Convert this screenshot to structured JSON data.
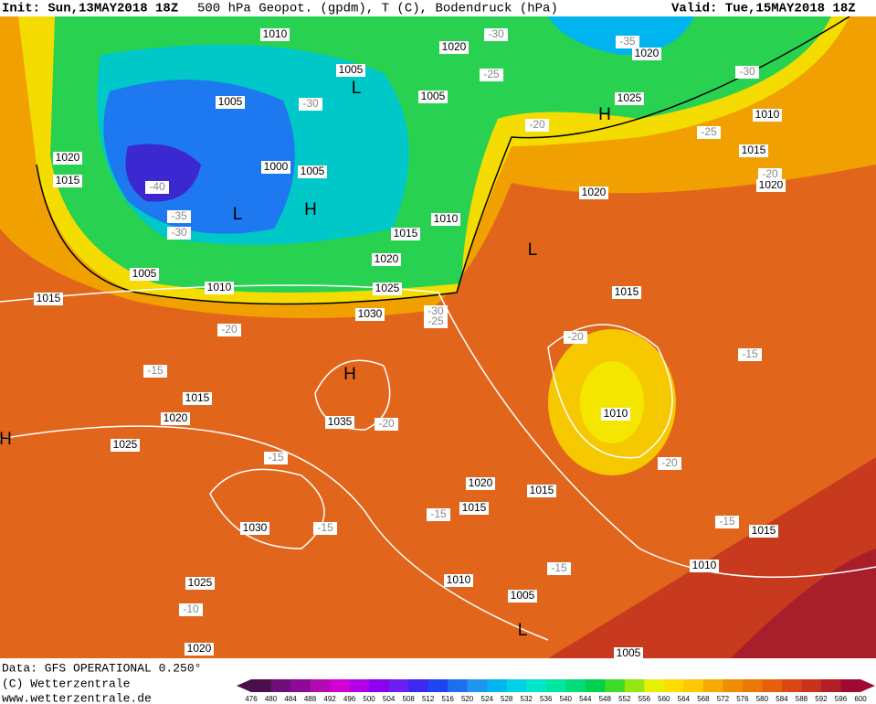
{
  "header": {
    "init": "Init: Sun,13MAY2018 18Z",
    "title": "500 hPa Geopot. (gpdm), T (C), Bodendruck (hPa)",
    "valid": "Valid: Tue,15MAY2018 18Z"
  },
  "footer": {
    "source": "Data: GFS OPERATIONAL 0.250°",
    "copyright": "(C) Wetterzentrale",
    "url": "www.wetterzentrale.de"
  },
  "pressure_labels": [
    "1010",
    "1020",
    "1020",
    "1005",
    "1005",
    "1005",
    "1025",
    "1010",
    "1015",
    "1020",
    "1015",
    "1000",
    "1005",
    "1020",
    "1020",
    "1010",
    "1015",
    "1020",
    "1005",
    "1010",
    "1025",
    "1015",
    "1015",
    "1030",
    "1015",
    "1020",
    "1035",
    "1010",
    "1025",
    "1020",
    "1015",
    "1015",
    "1030",
    "1015",
    "1010",
    "1010",
    "1025",
    "1005",
    "1020",
    "1005"
  ],
  "temperature_labels": [
    "-30",
    "-35",
    "-30",
    "-25",
    "-30",
    "-20",
    "-25",
    "-20",
    "-40",
    "-35",
    "-30",
    "-30",
    "-25",
    "-20",
    "-20",
    "-15",
    "-15",
    "-20",
    "-15",
    "-20",
    "-15",
    "-15",
    "-15",
    "-15",
    "-10"
  ],
  "pressure_centers": [
    "L",
    "H",
    "L",
    "H",
    "L",
    "H",
    "H",
    "L"
  ],
  "legend": {
    "labels": [
      "476",
      "480",
      "484",
      "488",
      "492",
      "496",
      "500",
      "504",
      "508",
      "512",
      "516",
      "520",
      "524",
      "528",
      "532",
      "536",
      "540",
      "544",
      "548",
      "552",
      "556",
      "560",
      "564",
      "568",
      "572",
      "576",
      "580",
      "584",
      "588",
      "592",
      "596",
      "600"
    ],
    "colors": [
      "#4b0f4b",
      "#6e0f78",
      "#8c0a96",
      "#b40ab4",
      "#d200d2",
      "#b400e6",
      "#8c00f0",
      "#6e1ef0",
      "#3c28f0",
      "#1e46f0",
      "#1e6ef0",
      "#1e96f0",
      "#00b4f0",
      "#00d2e6",
      "#00e6c8",
      "#00e6a0",
      "#00dc78",
      "#00d250",
      "#3cdc28",
      "#96e614",
      "#e6f000",
      "#ffdc00",
      "#ffc800",
      "#f5aa00",
      "#f08c00",
      "#eb7800",
      "#e65f0a",
      "#dc4614",
      "#c8321e",
      "#b41e28",
      "#a00a32"
    ]
  }
}
